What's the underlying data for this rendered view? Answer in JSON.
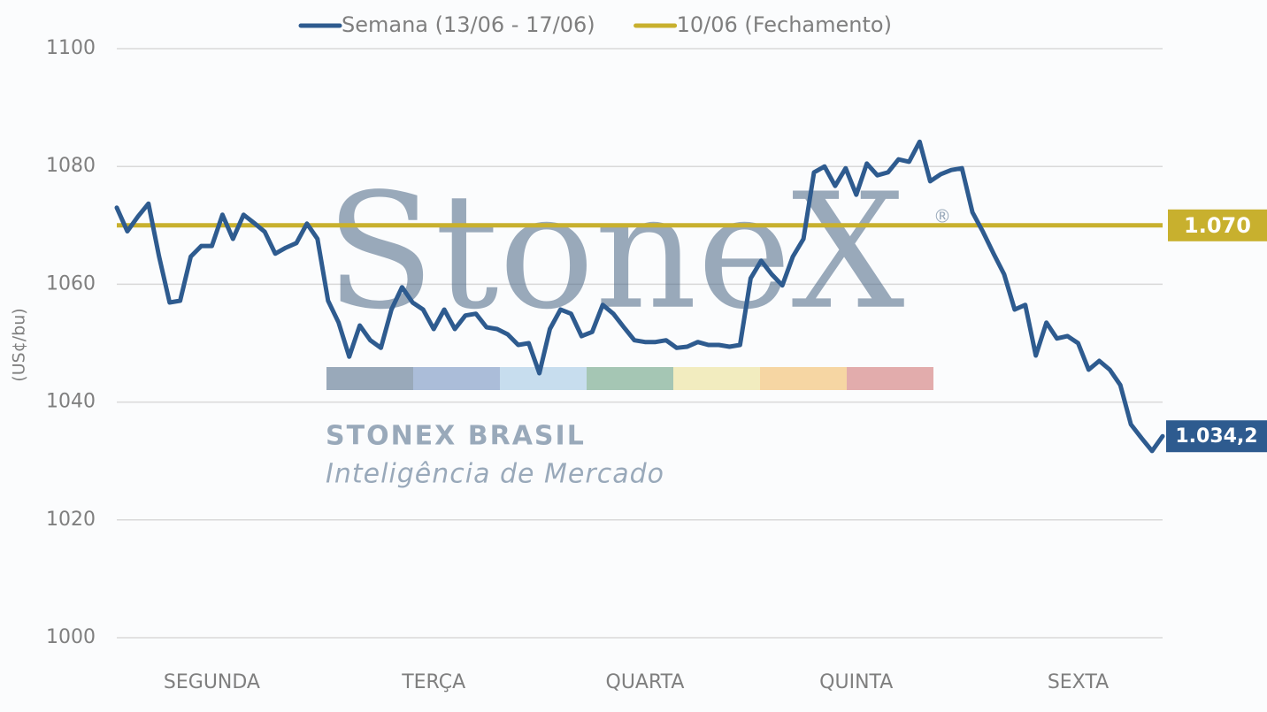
{
  "chart_data": {
    "type": "line",
    "y_label": "(US¢/bu)",
    "categories": [
      null,
      null,
      null,
      null,
      null,
      null,
      null,
      null,
      null,
      "SEGUNDA",
      null,
      null,
      null,
      null,
      null,
      null,
      null,
      null,
      null,
      null,
      null,
      null,
      null,
      null,
      null,
      null,
      null,
      null,
      null,
      null,
      "TERÇA",
      null,
      null,
      null,
      null,
      null,
      null,
      null,
      null,
      null,
      null,
      null,
      null,
      null,
      null,
      null,
      null,
      null,
      null,
      null,
      "QUARTA",
      null,
      null,
      null,
      null,
      null,
      null,
      null,
      null,
      null,
      null,
      null,
      null,
      null,
      null,
      null,
      null,
      null,
      null,
      null,
      "QUINTA",
      null,
      null,
      null,
      null,
      null,
      null,
      null,
      null,
      null,
      null,
      null,
      null,
      null,
      null,
      null,
      null,
      null,
      null,
      null,
      null,
      "SEXTA",
      null,
      null,
      null,
      null,
      null,
      null,
      null,
      null
    ],
    "series": [
      {
        "name": "Semana (13/06 - 17/06)",
        "color": "#2e5b8f",
        "values": [
          1073,
          1069,
          1071.5,
          1073.7,
          1064.7,
          1056.9,
          1057.2,
          1064.7,
          1066.5,
          1066.5,
          1071.8,
          1067.7,
          1071.8,
          1070.4,
          1068.9,
          1065.2,
          1066.2,
          1067,
          1070.3,
          1067.7,
          1057.2,
          1053.5,
          1047.7,
          1053,
          1050.5,
          1049.2,
          1055.7,
          1059.5,
          1056.9,
          1055.7,
          1052.4,
          1055.7,
          1052.4,
          1054.7,
          1055,
          1052.7,
          1052.4,
          1051.5,
          1049.7,
          1050,
          1044.9,
          1052.4,
          1055.7,
          1055,
          1051.2,
          1051.9,
          1056.5,
          1055,
          1052.7,
          1050.5,
          1050.2,
          1050.2,
          1050.5,
          1049.2,
          1049.4,
          1050.2,
          1049.7,
          1049.7,
          1049.4,
          1049.7,
          1061,
          1064,
          1061.7,
          1059.8,
          1064.7,
          1067.7,
          1079,
          1080,
          1076.7,
          1079.7,
          1075.2,
          1080.5,
          1078.5,
          1079,
          1081.2,
          1080.8,
          1084.2,
          1077.5,
          1078.7,
          1079.4,
          1079.7,
          1072.2,
          1068.9,
          1065.2,
          1061.7,
          1055.7,
          1056.5,
          1047.9,
          1053.5,
          1050.8,
          1051.2,
          1050,
          1045.5,
          1047,
          1045.5,
          1042.9,
          1036.2,
          1033.9,
          1031.7,
          1034.2
        ],
        "end_label": "1.034,2"
      }
    ],
    "reference_lines": [
      {
        "name": "10/06 (Fechamento)",
        "color": "#c8b02e",
        "value": 1070,
        "value_label": "1.070"
      }
    ],
    "ylim": [
      1000,
      1100
    ],
    "yticks": [
      1000,
      1020,
      1040,
      1060,
      1080,
      1100
    ],
    "grid": true,
    "legend": "top",
    "watermark": {
      "logo": "StoneX",
      "registered": "®",
      "company": "STONEX BRASIL",
      "tagline": "Inteligência de Mercado"
    }
  }
}
